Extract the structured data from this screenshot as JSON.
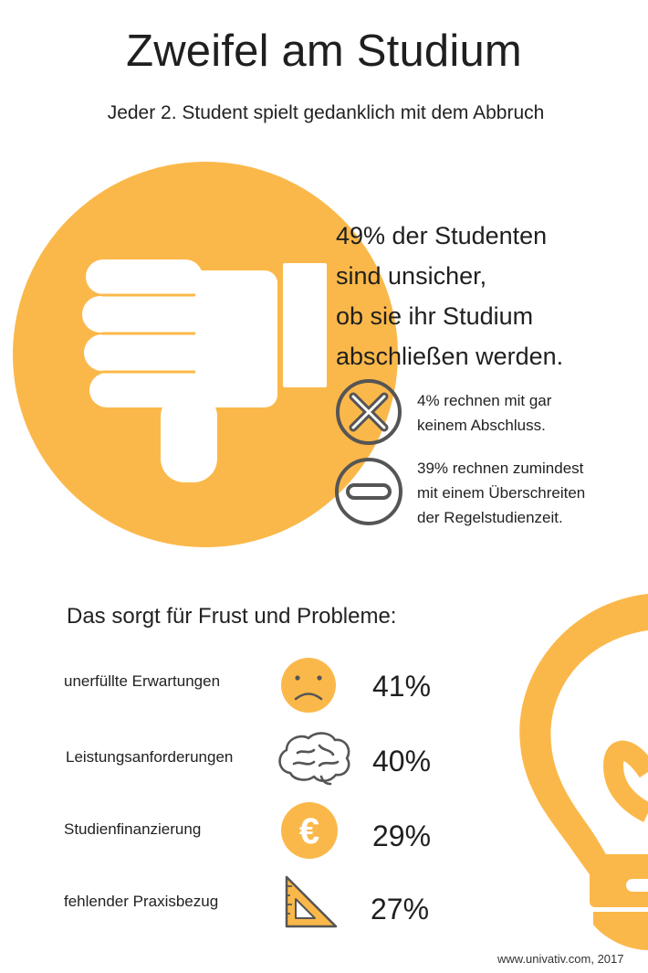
{
  "header": {
    "title": "Zweifel am Studium",
    "subtitle": "Jeder 2. Student spielt gedanklich mit dem Abbruch"
  },
  "hero": {
    "lines": [
      "49% der Studenten",
      "sind unsicher,",
      "ob sie ihr Studium",
      "abschließen werden."
    ],
    "items": [
      {
        "icon": "x-circle-icon",
        "lines": [
          "4% rechnen mit gar",
          "keinem Abschluss."
        ]
      },
      {
        "icon": "minus-circle-icon",
        "lines": [
          "39% rechnen zumindest",
          "mit einem Überschreiten",
          "der Regelstudienzeit."
        ]
      }
    ]
  },
  "problems": {
    "heading": "Das sorgt für Frust und Probleme:",
    "rows": [
      {
        "label": "unerfüllte Erwartungen",
        "percent": "41%",
        "icon": "sad-face-icon"
      },
      {
        "label": "Leistungsanforderungen",
        "percent": "40%",
        "icon": "brain-icon"
      },
      {
        "label": "Studienfinanzierung",
        "percent": "29%",
        "icon": "euro-icon"
      },
      {
        "label": "fehlender Praxisbezug",
        "percent": "27%",
        "icon": "set-square-icon"
      }
    ]
  },
  "footer": {
    "credit": "www.univativ.com, 2017"
  },
  "colors": {
    "accent": "#FBB84A",
    "icon_gray": "#555555",
    "text": "#222222"
  }
}
